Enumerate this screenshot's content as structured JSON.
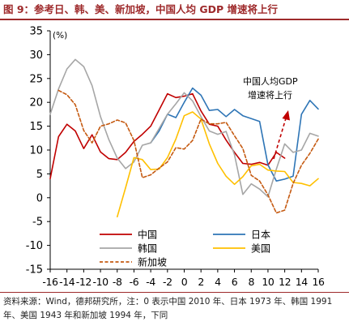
{
  "header": {
    "title": "图 9：参考日、韩、美、新加坡，中国人均 GDP 增速将上行"
  },
  "footer": {
    "source": "资料来源：Wind，德邦研究所，注：0 表示中国 2010 年、日本 1973 年、韩国 1991 年、美国 1943 年和新加坡 1994 年，下同"
  },
  "colors": {
    "china": "#c00000",
    "japan": "#2e75b6",
    "korea": "#a6a6a6",
    "usa": "#ffc000",
    "singapore": "#c55a11",
    "accent": "#9e2a2b"
  },
  "chart_data": {
    "type": "line",
    "ylabel": "(%)",
    "xlim": [
      -16,
      16
    ],
    "ylim": [
      -15,
      35
    ],
    "x_ticks": [
      "-16",
      "-14",
      "-12",
      "-10",
      "-8",
      "-6",
      "-4",
      "-2",
      "0",
      "2",
      "4",
      "6",
      "8",
      "10",
      "12",
      "14",
      "16"
    ],
    "y_ticks": [
      "35",
      "30",
      "25",
      "20",
      "15",
      "10",
      "5",
      "0",
      "-5",
      "-10",
      "-15"
    ],
    "annotation": "中国人均GDP\n增速将上行",
    "legend": [
      "中国",
      "日本",
      "韩国",
      "美国",
      "新加坡"
    ],
    "series": [
      {
        "name": "中国",
        "color": "#c00000",
        "style": "solid",
        "x": [
          -16,
          -15,
          -14,
          -13,
          -12,
          -11,
          -10,
          -9,
          -8,
          -7,
          -6,
          -5,
          -4,
          -3,
          -2,
          -1,
          0,
          1,
          2,
          3,
          4,
          5,
          6,
          7,
          8,
          9,
          10,
          11,
          12
        ],
        "y": [
          4,
          12.8,
          15.4,
          14,
          10.3,
          13.2,
          9.6,
          8.2,
          8,
          9.5,
          11.8,
          13.3,
          15,
          18.4,
          21.8,
          21,
          21.3,
          21.8,
          18.2,
          15.4,
          15,
          12.1,
          9.5,
          7.2,
          7,
          7.4,
          6.8,
          9.5,
          8.3
        ]
      },
      {
        "name": "日本",
        "color": "#2e75b6",
        "style": "solid",
        "x": [
          -4,
          -3,
          -2,
          -1,
          0,
          1,
          2,
          3,
          4,
          5,
          6,
          7,
          8,
          9,
          10,
          11,
          12,
          13,
          14,
          15,
          16
        ],
        "y": [
          11.5,
          14,
          17.5,
          16.8,
          20,
          23,
          21.5,
          18.3,
          18.5,
          17,
          18.5,
          17.2,
          16.6,
          16,
          6.9,
          3.5,
          3.9,
          4.5,
          17.5,
          20.4,
          18.6
        ]
      },
      {
        "name": "韩国",
        "color": "#a6a6a6",
        "style": "solid",
        "x": [
          -16,
          -15,
          -14,
          -13,
          -12,
          -11,
          -10,
          -9,
          -8,
          -7,
          -6,
          -5,
          -4,
          -3,
          -2,
          -1,
          0,
          1,
          2,
          3,
          4,
          5,
          6,
          7,
          8,
          9,
          10,
          11,
          12,
          13,
          14,
          15,
          16
        ],
        "y": [
          17.5,
          22.8,
          27,
          29,
          27.5,
          23.5,
          17,
          12.2,
          8.3,
          6.1,
          7.5,
          11,
          11.5,
          14.5,
          17.5,
          19.7,
          22,
          20.3,
          17,
          14,
          13.3,
          13.9,
          9,
          0.7,
          2.9,
          1.8,
          0.2,
          6,
          11.3,
          9.5,
          10,
          13.5,
          12.9
        ]
      },
      {
        "name": "美国",
        "color": "#ffc000",
        "style": "solid",
        "x": [
          -8,
          -7,
          -6,
          -5,
          -4,
          -3,
          -2,
          -1,
          0,
          1,
          2,
          3,
          4,
          5,
          6,
          7,
          8,
          9,
          10,
          11,
          12,
          13,
          14,
          15,
          16
        ],
        "y": [
          -4,
          2.1,
          8.4,
          8,
          5.9,
          6,
          8.4,
          12.3,
          17.2,
          18,
          16.5,
          11.3,
          7.2,
          4.5,
          2.8,
          4.4,
          6.7,
          7,
          5.8,
          5.6,
          5.5,
          3.2,
          3,
          2.5,
          4
        ]
      },
      {
        "name": "新加坡",
        "color": "#c55a11",
        "style": "dash",
        "x": [
          -15,
          -14,
          -13,
          -12,
          -11,
          -10,
          -9,
          -8,
          -7,
          -6,
          -5,
          -4,
          -3,
          -2,
          -1,
          0,
          1,
          2,
          3,
          4,
          5,
          6,
          7,
          8,
          9,
          10,
          11,
          12,
          13,
          14,
          15,
          16
        ],
        "y": [
          22.5,
          21.6,
          19.5,
          14.1,
          11.5,
          15,
          15.5,
          16.3,
          15.7,
          12,
          4.2,
          4.8,
          6.2,
          7.5,
          10.5,
          10.2,
          12,
          16.5,
          15.5,
          15.5,
          15.8,
          13,
          10.3,
          4.7,
          3.5,
          0.6,
          -3.2,
          -2.6,
          3,
          6.8,
          9.3,
          12.3
        ]
      }
    ]
  }
}
